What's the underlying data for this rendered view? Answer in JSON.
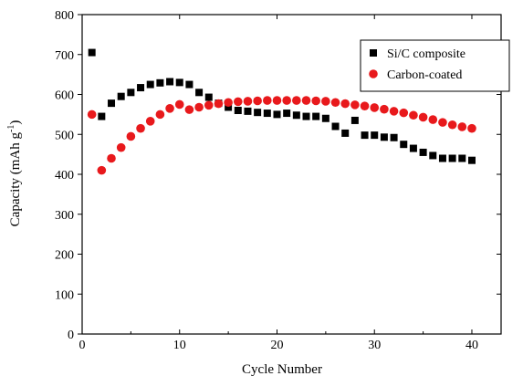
{
  "chart_data": {
    "type": "scatter",
    "title": "",
    "xlabel": "Cycle Number",
    "ylabel": "Capacity (mAh g",
    "ylabel_sup": "-1",
    "ylabel_close": ")",
    "xlim": [
      0,
      43
    ],
    "ylim": [
      0,
      800
    ],
    "x_ticks": [
      0,
      10,
      20,
      30,
      40
    ],
    "y_ticks": [
      0,
      100,
      200,
      300,
      400,
      500,
      600,
      700,
      800
    ],
    "grid": false,
    "legend_position": "top-right",
    "series": [
      {
        "name": "Si/C composite",
        "marker": "square",
        "color": "#000000",
        "x": [
          1,
          2,
          3,
          4,
          5,
          6,
          7,
          8,
          9,
          10,
          11,
          12,
          13,
          14,
          15,
          16,
          17,
          18,
          19,
          20,
          21,
          22,
          23,
          24,
          25,
          26,
          27,
          28,
          29,
          30,
          31,
          32,
          33,
          34,
          35,
          36,
          37,
          38,
          39,
          40
        ],
        "y": [
          705,
          545,
          578,
          595,
          605,
          617,
          625,
          629,
          632,
          630,
          625,
          605,
          593,
          578,
          568,
          560,
          558,
          555,
          553,
          550,
          553,
          548,
          545,
          545,
          540,
          520,
          503,
          535,
          498,
          498,
          493,
          492,
          475,
          465,
          455,
          447,
          440,
          440,
          440,
          435
        ]
      },
      {
        "name": "Carbon-coated",
        "marker": "circle",
        "color": "#e8191c",
        "x": [
          1,
          2,
          3,
          4,
          5,
          6,
          7,
          8,
          9,
          10,
          11,
          12,
          13,
          14,
          15,
          16,
          17,
          18,
          19,
          20,
          21,
          22,
          23,
          24,
          25,
          26,
          27,
          28,
          29,
          30,
          31,
          32,
          33,
          34,
          35,
          36,
          37,
          38,
          39,
          40
        ],
        "y": [
          550,
          410,
          440,
          467,
          495,
          515,
          533,
          550,
          565,
          575,
          562,
          568,
          573,
          577,
          580,
          582,
          583,
          584,
          585,
          585,
          585,
          585,
          585,
          584,
          583,
          580,
          577,
          574,
          571,
          567,
          563,
          558,
          554,
          548,
          543,
          537,
          530,
          524,
          519,
          515
        ]
      }
    ]
  }
}
